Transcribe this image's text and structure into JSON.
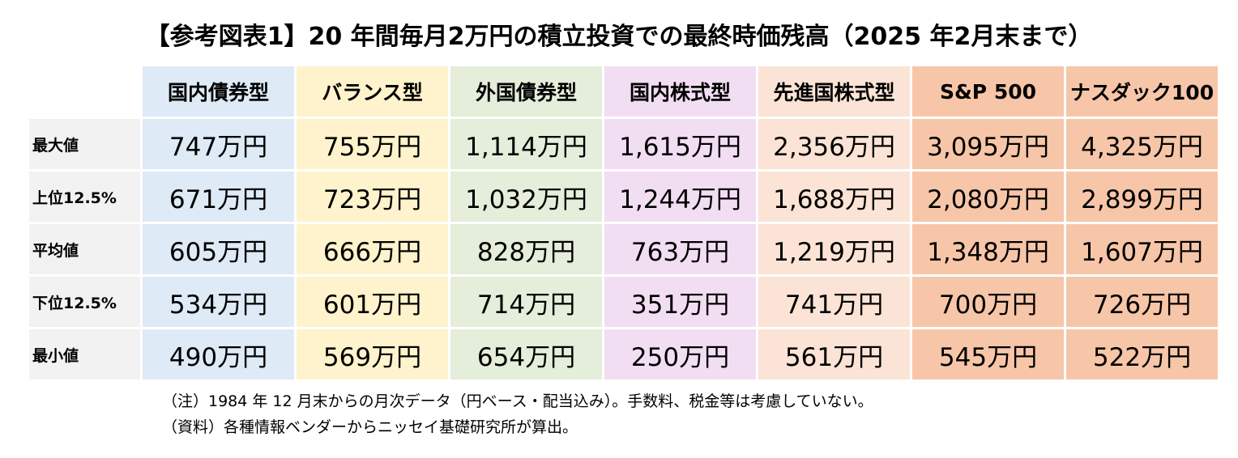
{
  "chart_data": {
    "type": "table",
    "title": "【参考図表1】20 年間毎月2万円の積立投資での最終時価残高（2025 年2月末まで）",
    "columns": [
      "国内債券型",
      "バランス型",
      "外国債券型",
      "国内株式型",
      "先進国株式型",
      "S&P 500",
      "ナスダック100"
    ],
    "column_colors": [
      "#deeaf6",
      "#fef3cc",
      "#e4eedb",
      "#f2def2",
      "#fbe4d6",
      "#f7c6a8",
      "#f7c6a8"
    ],
    "rows": [
      {
        "label": "最大値",
        "values": [
          "747万円",
          "755万円",
          "1,114万円",
          "1,615万円",
          "2,356万円",
          "3,095万円",
          "4,325万円"
        ]
      },
      {
        "label": "上位12.5%",
        "values": [
          "671万円",
          "723万円",
          "1,032万円",
          "1,244万円",
          "1,688万円",
          "2,080万円",
          "2,899万円"
        ]
      },
      {
        "label": "平均値",
        "values": [
          "605万円",
          "666万円",
          "828万円",
          "763万円",
          "1,219万円",
          "1,348万円",
          "1,607万円"
        ]
      },
      {
        "label": "下位12.5%",
        "values": [
          "534万円",
          "601万円",
          "714万円",
          "351万円",
          "741万円",
          "700万円",
          "726万円"
        ]
      },
      {
        "label": "最小値",
        "values": [
          "490万円",
          "569万円",
          "654万円",
          "250万円",
          "561万円",
          "545万円",
          "522万円"
        ]
      }
    ],
    "notes": [
      "（注）1984 年 12 月末からの月次データ（円ベース・配当込み）。手数料、税金等は考慮していない。",
      "（資料）各種情報ベンダーからニッセイ基礎研究所が算出。"
    ]
  }
}
